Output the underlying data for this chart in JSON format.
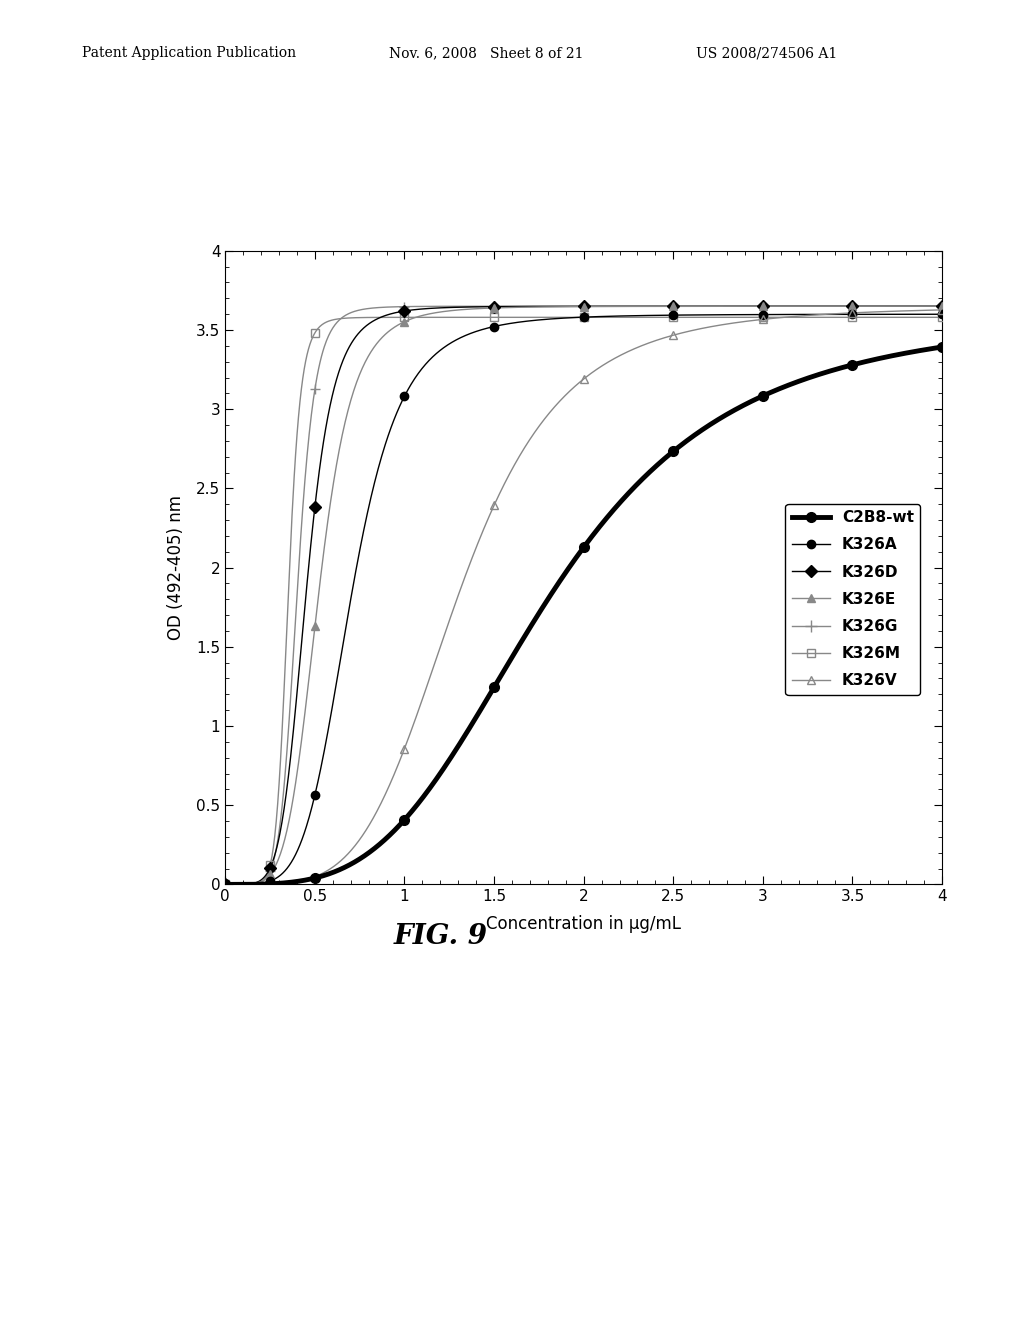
{
  "title": "FIG. 9",
  "xlabel": "Concentration in μg/mL",
  "ylabel": "OD (492-405) nm",
  "header_left": "Patent Application Publication",
  "header_mid": "Nov. 6, 2008   Sheet 8 of 21",
  "header_right": "US 2008/274506 A1",
  "xlim": [
    0,
    4
  ],
  "ylim": [
    0,
    4
  ],
  "xticks": [
    0,
    0.5,
    1,
    1.5,
    2,
    2.5,
    3,
    3.5,
    4
  ],
  "yticks": [
    0,
    0.5,
    1,
    1.5,
    2,
    2.5,
    3,
    3.5,
    4
  ],
  "series": {
    "C2B8-wt": {
      "color": "#000000",
      "linewidth": 3.5,
      "marker": "o",
      "markersize": 7,
      "fillstyle": "full",
      "ec50": 1.8,
      "top": 3.6,
      "hillcoef": 3.5,
      "marker_x": [
        0,
        0.25,
        0.5,
        1.0,
        1.5,
        2.0,
        2.5,
        3.0,
        3.5,
        4.0
      ]
    },
    "K326A": {
      "color": "#000000",
      "linewidth": 1.0,
      "marker": "o",
      "markersize": 6,
      "fillstyle": "full",
      "ec50": 0.7,
      "top": 3.6,
      "hillcoef": 5.0,
      "marker_x": [
        0,
        0.25,
        0.5,
        1.0,
        1.5,
        2.0,
        2.5,
        3.0,
        3.5,
        4.0
      ]
    },
    "K326D": {
      "color": "#000000",
      "linewidth": 1.0,
      "marker": "D",
      "markersize": 6,
      "fillstyle": "full",
      "ec50": 0.45,
      "top": 3.65,
      "hillcoef": 6.0,
      "marker_x": [
        0,
        0.25,
        0.5,
        1.0,
        1.5,
        2.0,
        2.5,
        3.0,
        3.5,
        4.0
      ]
    },
    "K326E": {
      "color": "#888888",
      "linewidth": 1.0,
      "marker": "^",
      "markersize": 6,
      "fillstyle": "full",
      "ec50": 0.52,
      "top": 3.65,
      "hillcoef": 5.5,
      "marker_x": [
        0,
        0.25,
        0.5,
        1.0,
        1.5,
        2.0,
        2.5,
        3.0,
        3.5,
        4.0
      ]
    },
    "K326G": {
      "color": "#888888",
      "linewidth": 1.0,
      "marker": "P",
      "markersize": 7,
      "fillstyle": "full",
      "ec50": 0.4,
      "top": 3.65,
      "hillcoef": 8.0,
      "marker_x": [
        0,
        0.25,
        0.5,
        1.0,
        1.5,
        2.0,
        2.5,
        3.0,
        3.5,
        4.0
      ]
    },
    "K326M": {
      "color": "#888888",
      "linewidth": 1.0,
      "marker": "s",
      "markersize": 6,
      "fillstyle": "none",
      "ec50": 0.35,
      "top": 3.58,
      "hillcoef": 10.0,
      "marker_x": [
        0,
        0.25,
        0.5,
        1.0,
        1.5,
        2.0,
        2.5,
        3.0,
        3.5,
        4.0
      ]
    },
    "K326V": {
      "color": "#888888",
      "linewidth": 1.0,
      "marker": "^",
      "markersize": 6,
      "fillstyle": "none",
      "ec50": 1.3,
      "top": 3.65,
      "hillcoef": 4.5,
      "marker_x": [
        0,
        0.25,
        0.5,
        1.0,
        1.5,
        2.0,
        2.5,
        3.0,
        3.5,
        4.0
      ]
    }
  },
  "background_color": "#ffffff"
}
